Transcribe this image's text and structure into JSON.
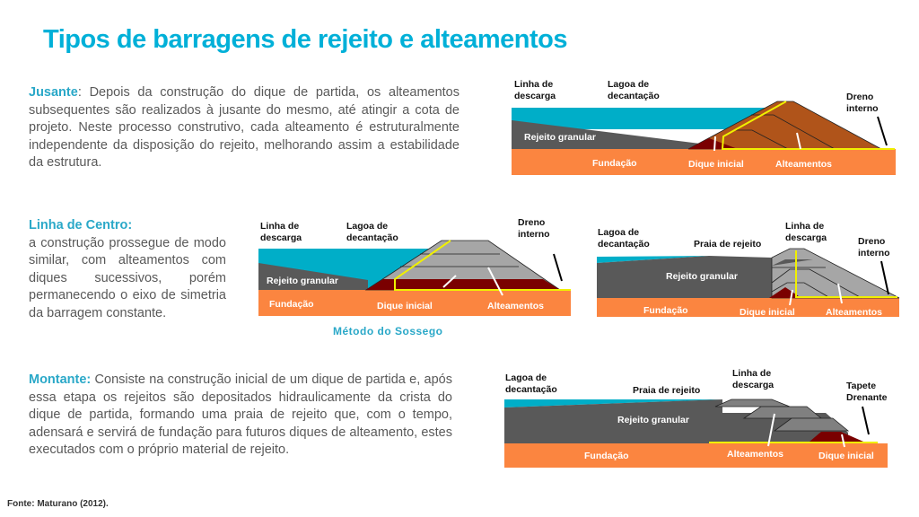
{
  "title": "Tipos de barragens de rejeito e alteamentos",
  "jusante": {
    "lead": "Jusante",
    "text": ": Depois da construção do dique de partida, os alteamentos subsequentes são realizados à jusante do mesmo, até atingir a cota de projeto. Neste processo construtivo, cada alteamento é estruturalmente independente da disposição do rejeito, melhorando assim a estabilidade da estrutura."
  },
  "centro": {
    "lead": "Linha de Centro:",
    "text": "a construção prossegue de modo similar, com alteamentos com diques sucessivos, porém permanecendo o eixo de simetria da barragem constante."
  },
  "montante": {
    "lead": "Montante:",
    "text": " Consiste na construção inicial de um dique de partida e, após essa etapa os rejeitos são depositados hidraulicamente da crista do dique de partida, formando uma praia de rejeito que, com o tempo, adensará e servirá de fundação para futuros diques de alteamento, estes executados com o próprio material de rejeito."
  },
  "labels": {
    "linha1": "Linha de",
    "linha2": "descarga",
    "lagoa1": "Lagoa de",
    "lagoa2": "decantação",
    "dreno1": "Dreno",
    "dreno2": "interno",
    "rejeito": "Rejeito granular",
    "fundacao": "Fundação",
    "dique": "Dique inicial",
    "alteamentos": "Alteamentos",
    "praia": "Praia de rejeito",
    "tapete1": "Tapete",
    "tapete2": "Drenante"
  },
  "caption": "Método do Sossego",
  "source": "Fonte: Maturano (2012).",
  "colors": {
    "water": "#00aec8",
    "tailings": "#595959",
    "foundation": "#fb8540",
    "dam_brown": "#b0541a",
    "dike_red": "#7a0000",
    "dam_gray": "#a6a6a6",
    "drain": "#f0f000",
    "accent": "#00b0d8"
  }
}
